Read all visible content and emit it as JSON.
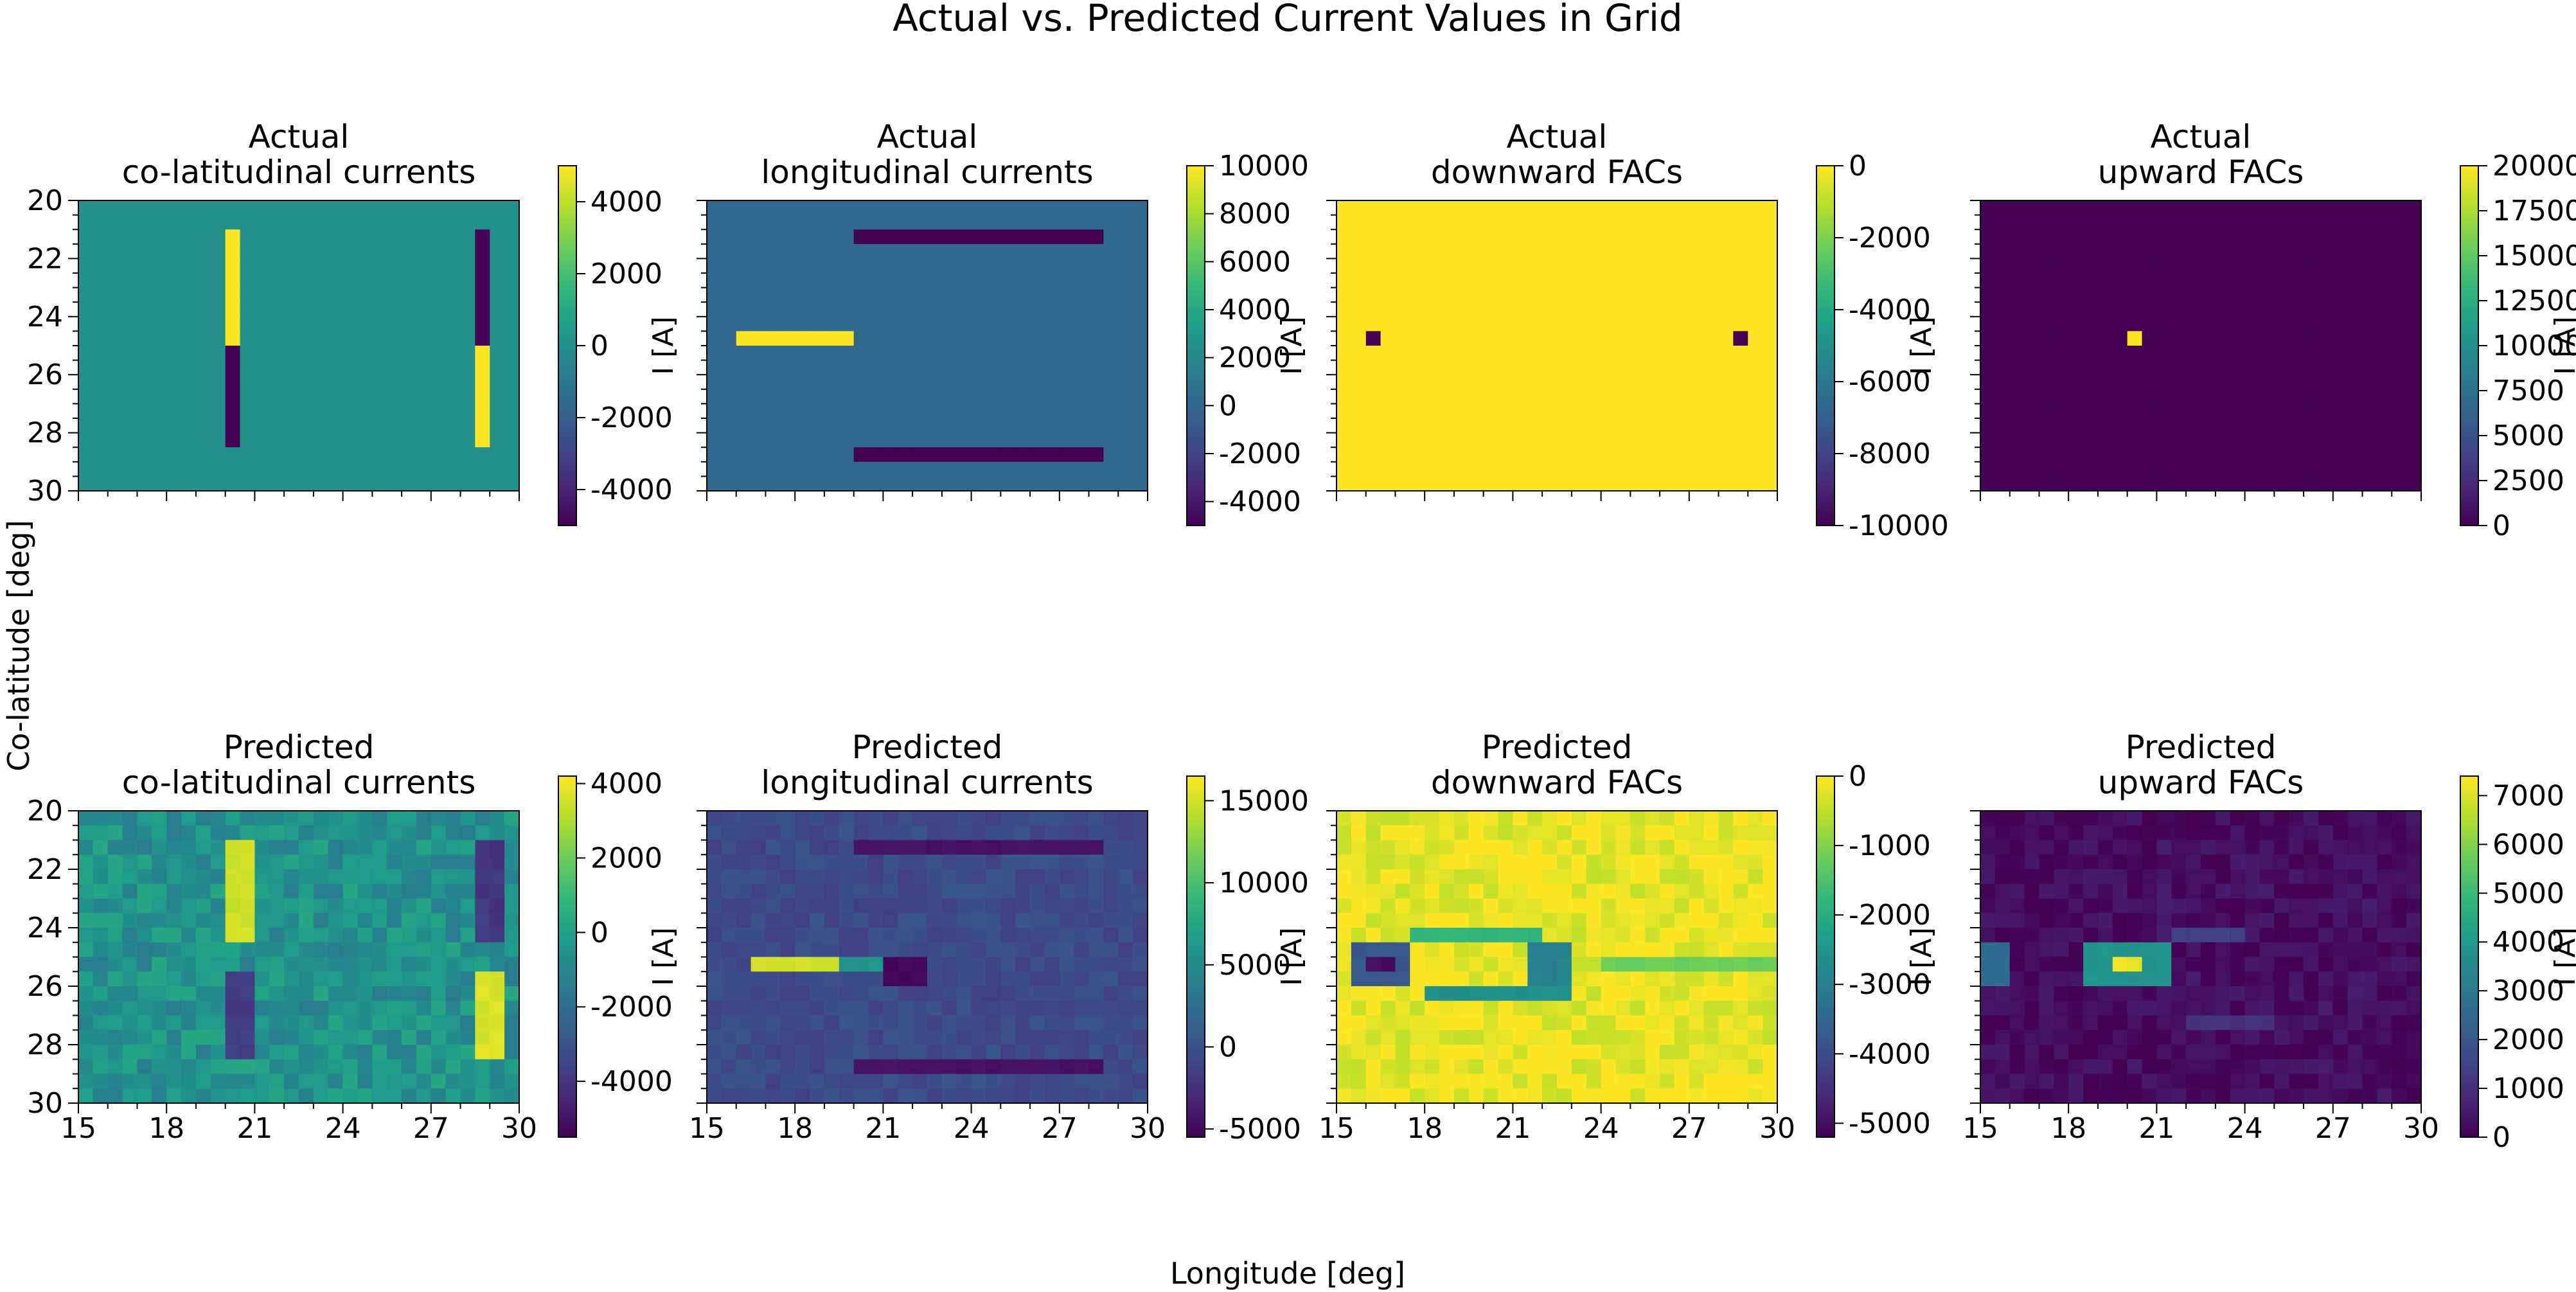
{
  "figure": {
    "title": "Actual vs. Predicted Current Values in Grid",
    "xlabel": "Longitude [deg]",
    "ylabel": "Co-latitude [deg]"
  },
  "colormap": {
    "name": "viridis",
    "stops": [
      "#440154",
      "#482878",
      "#3e4a89",
      "#31688e",
      "#26828e",
      "#1f9e89",
      "#35b779",
      "#6ece58",
      "#b5de2b",
      "#fde725"
    ]
  },
  "chart_data": [
    {
      "type": "heatmap",
      "row": "Actual",
      "title_line1": "Actual",
      "title_line2": "co-latitudinal currents",
      "cbar_label": "I [A]",
      "vmin": -5000,
      "vmax": 5000,
      "cbar_ticks": [
        -4000,
        -2000,
        0,
        2000,
        4000
      ],
      "x_range": [
        15,
        30
      ],
      "y_range": [
        20,
        30
      ],
      "show_x_ticklabels": false,
      "show_y_ticklabels": true,
      "x_ticks": [
        15,
        18,
        21,
        24,
        27,
        30
      ],
      "y_ticks": [
        20,
        22,
        24,
        26,
        28,
        30
      ],
      "background": 0,
      "patches": [
        {
          "x": [
            20,
            20.5
          ],
          "y": [
            21,
            24.8
          ],
          "value": 5000
        },
        {
          "x": [
            20,
            20.5
          ],
          "y": [
            24.8,
            28.6
          ],
          "value": -5000
        },
        {
          "x": [
            28.5,
            29
          ],
          "y": [
            21,
            24.8
          ],
          "value": -5000
        },
        {
          "x": [
            28.5,
            29
          ],
          "y": [
            24.8,
            28.6
          ],
          "value": 5000
        }
      ]
    },
    {
      "type": "heatmap",
      "row": "Actual",
      "title_line1": "Actual",
      "title_line2": "longitudinal currents",
      "cbar_label": "I [A]",
      "vmin": -5000,
      "vmax": 10000,
      "cbar_ticks": [
        -4000,
        -2000,
        0,
        2000,
        4000,
        6000,
        8000,
        10000
      ],
      "x_range": [
        15,
        30
      ],
      "y_range": [
        20,
        30
      ],
      "show_x_ticklabels": false,
      "show_y_ticklabels": false,
      "x_ticks": [
        15,
        18,
        21,
        24,
        27,
        30
      ],
      "y_ticks": [
        20,
        22,
        24,
        26,
        28,
        30
      ],
      "background": 0,
      "patches": [
        {
          "x": [
            20,
            28.6
          ],
          "y": [
            21,
            21.5
          ],
          "value": -5000
        },
        {
          "x": [
            16,
            20
          ],
          "y": [
            24.7,
            25.2
          ],
          "value": 10000
        },
        {
          "x": [
            20,
            28.6
          ],
          "y": [
            28.5,
            29
          ],
          "value": -5000
        }
      ]
    },
    {
      "type": "heatmap",
      "row": "Actual",
      "title_line1": "Actual",
      "title_line2": "downward FACs",
      "cbar_label": "I [A]",
      "vmin": -10000,
      "vmax": 0,
      "cbar_ticks": [
        -10000,
        -8000,
        -6000,
        -4000,
        -2000,
        0
      ],
      "x_range": [
        15,
        30
      ],
      "y_range": [
        20,
        30
      ],
      "show_x_ticklabels": false,
      "show_y_ticklabels": false,
      "x_ticks": [
        15,
        18,
        21,
        24,
        27,
        30
      ],
      "y_ticks": [
        20,
        22,
        24,
        26,
        28,
        30
      ],
      "background": 0,
      "patches": [
        {
          "x": [
            16,
            16.5
          ],
          "y": [
            24.7,
            25.2
          ],
          "value": -10000
        },
        {
          "x": [
            28.5,
            29
          ],
          "y": [
            24.7,
            25.2
          ],
          "value": -10000
        }
      ]
    },
    {
      "type": "heatmap",
      "row": "Actual",
      "title_line1": "Actual",
      "title_line2": "upward FACs",
      "cbar_label": "I [A]",
      "vmin": 0,
      "vmax": 20000,
      "cbar_ticks": [
        0,
        2500,
        5000,
        7500,
        10000,
        12500,
        15000,
        17500,
        20000
      ],
      "x_range": [
        15,
        30
      ],
      "y_range": [
        20,
        30
      ],
      "show_x_ticklabels": false,
      "show_y_ticklabels": false,
      "x_ticks": [
        15,
        18,
        21,
        24,
        27,
        30
      ],
      "y_ticks": [
        20,
        22,
        24,
        26,
        28,
        30
      ],
      "background": 0,
      "patches": [
        {
          "x": [
            20,
            20.5
          ],
          "y": [
            24.7,
            25.2
          ],
          "value": 20000
        }
      ]
    },
    {
      "type": "heatmap",
      "row": "Predicted",
      "title_line1": "Predicted",
      "title_line2": "co-latitudinal currents",
      "cbar_label": "I [A]",
      "vmin": -5500,
      "vmax": 4200,
      "cbar_ticks": [
        -4000,
        -2000,
        0,
        2000,
        4000
      ],
      "x_range": [
        15,
        30
      ],
      "y_range": [
        20,
        30
      ],
      "show_x_ticklabels": true,
      "show_y_ticklabels": true,
      "x_ticks": [
        15,
        18,
        21,
        24,
        27,
        30
      ],
      "y_ticks": [
        20,
        22,
        24,
        26,
        28,
        30
      ],
      "background": -600,
      "noise": 900,
      "seed": 11,
      "patches": [
        {
          "x": [
            19.8,
            20.8
          ],
          "y": [
            21,
            24.5
          ],
          "value": 3500
        },
        {
          "x": [
            19.8,
            20.8
          ],
          "y": [
            25.3,
            28.6
          ],
          "value": -3800
        },
        {
          "x": [
            28.3,
            29.3
          ],
          "y": [
            21,
            24.5
          ],
          "value": -4000
        },
        {
          "x": [
            28.3,
            29.3
          ],
          "y": [
            25.3,
            28.6
          ],
          "value": 3600
        }
      ]
    },
    {
      "type": "heatmap",
      "row": "Predicted",
      "title_line1": "Predicted",
      "title_line2": "longitudinal currents",
      "cbar_label": "I [A]",
      "vmin": -5500,
      "vmax": 16500,
      "cbar_ticks": [
        -5000,
        0,
        5000,
        10000,
        15000
      ],
      "x_range": [
        15,
        30
      ],
      "y_range": [
        20,
        30
      ],
      "show_x_ticklabels": true,
      "show_y_ticklabels": false,
      "x_ticks": [
        15,
        18,
        21,
        24,
        27,
        30
      ],
      "y_ticks": [
        20,
        22,
        24,
        26,
        28,
        30
      ],
      "background": -500,
      "noise": 900,
      "seed": 23,
      "patches": [
        {
          "x": [
            20,
            28.6
          ],
          "y": [
            21,
            21.5
          ],
          "value": -4500
        },
        {
          "x": [
            16.5,
            19.5
          ],
          "y": [
            24.9,
            25.4
          ],
          "value": 15000
        },
        {
          "x": [
            19.5,
            21
          ],
          "y": [
            24.9,
            25.4
          ],
          "value": 6000
        },
        {
          "x": [
            21,
            22.3
          ],
          "y": [
            24.9,
            26
          ],
          "value": -5000
        },
        {
          "x": [
            20,
            28.6
          ],
          "y": [
            28.7,
            29.2
          ],
          "value": -4500
        }
      ]
    },
    {
      "type": "heatmap",
      "row": "Predicted",
      "title_line1": "Predicted",
      "title_line2": "downward FACs",
      "cbar_label": "I [A]",
      "vmin": -5200,
      "vmax": 0,
      "cbar_ticks": [
        -5000,
        -4000,
        -3000,
        -2000,
        -1000,
        0
      ],
      "x_range": [
        15,
        30
      ],
      "y_range": [
        20,
        30
      ],
      "show_x_ticklabels": true,
      "show_y_ticklabels": false,
      "x_ticks": [
        15,
        18,
        21,
        24,
        27,
        30
      ],
      "y_ticks": [
        20,
        22,
        24,
        26,
        28,
        30
      ],
      "background": -150,
      "noise": 350,
      "seed": 37,
      "patches": [
        {
          "x": [
            15.5,
            17.5
          ],
          "y": [
            24.5,
            26
          ],
          "value": -3800
        },
        {
          "x": [
            16,
            17
          ],
          "y": [
            25,
            25.5
          ],
          "value": -5000
        },
        {
          "x": [
            18,
            23
          ],
          "y": [
            25.8,
            26.3
          ],
          "value": -2600
        },
        {
          "x": [
            21.5,
            23
          ],
          "y": [
            24.3,
            26
          ],
          "value": -2900
        },
        {
          "x": [
            17.5,
            22
          ],
          "y": [
            23.8,
            24.3
          ],
          "value": -1800
        },
        {
          "x": [
            24,
            30
          ],
          "y": [
            24.8,
            25.3
          ],
          "value": -1200
        }
      ]
    },
    {
      "type": "heatmap",
      "row": "Predicted",
      "title_line1": "Predicted",
      "title_line2": "upward FACs",
      "cbar_label": "I [A]",
      "vmin": 0,
      "vmax": 7400,
      "cbar_ticks": [
        0,
        1000,
        2000,
        3000,
        4000,
        5000,
        6000,
        7000
      ],
      "x_range": [
        15,
        30
      ],
      "y_range": [
        20,
        30
      ],
      "show_x_ticklabels": true,
      "show_y_ticklabels": false,
      "x_ticks": [
        15,
        18,
        21,
        24,
        27,
        30
      ],
      "y_ticks": [
        20,
        22,
        24,
        26,
        28,
        30
      ],
      "background": 250,
      "noise": 350,
      "seed": 53,
      "patches": [
        {
          "x": [
            18.5,
            21.5
          ],
          "y": [
            24.5,
            26
          ],
          "value": 3800
        },
        {
          "x": [
            19.5,
            20.6
          ],
          "y": [
            24.8,
            25.4
          ],
          "value": 7200
        },
        {
          "x": [
            15,
            16
          ],
          "y": [
            24.5,
            26
          ],
          "value": 2600
        },
        {
          "x": [
            21.5,
            24
          ],
          "y": [
            24,
            24.6
          ],
          "value": 1400
        },
        {
          "x": [
            22,
            25
          ],
          "y": [
            27,
            27.5
          ],
          "value": 1100
        }
      ]
    }
  ]
}
